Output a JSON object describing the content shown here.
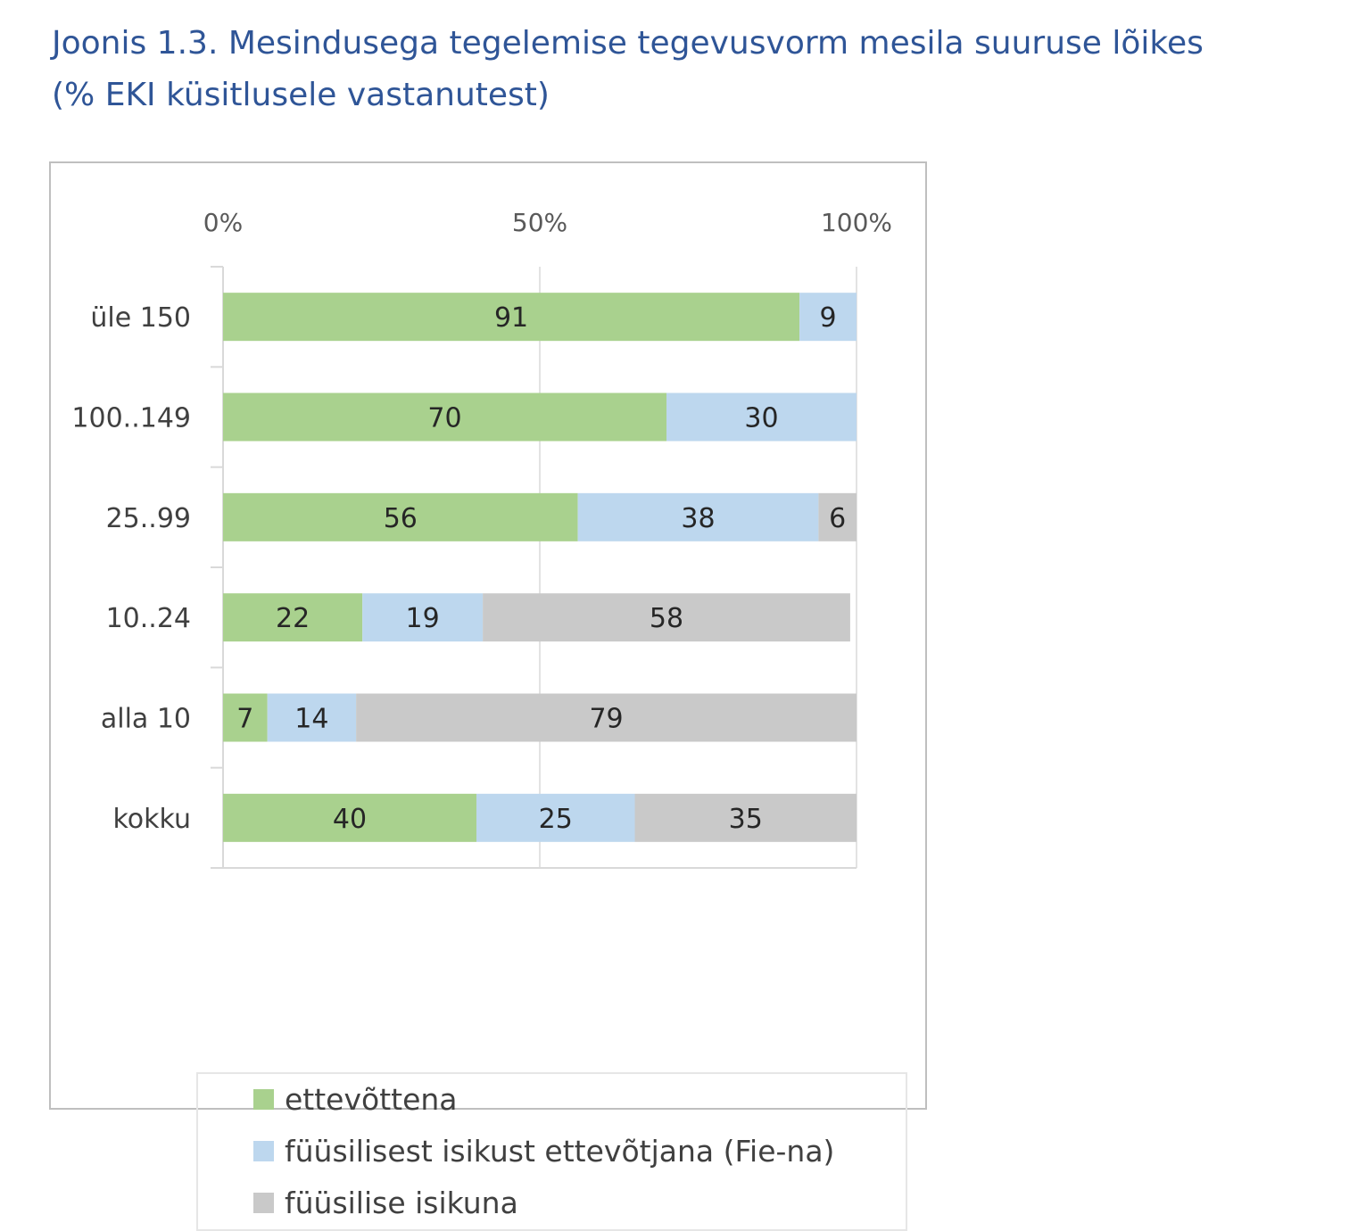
{
  "figure": {
    "title_line1": "Joonis 1.3. Mesindusega tegelemise tegevusvorm mesila suuruse lõikes",
    "title_line2": "(% EKI küsitlusele vastanutest)"
  },
  "chart_data": {
    "type": "bar",
    "orientation": "horizontal",
    "stacked": true,
    "percent_scale": true,
    "categories": [
      "üle 150",
      "100..149",
      "25..99",
      "10..24",
      "alla 10",
      "kokku"
    ],
    "series": [
      {
        "name": "ettevõttena",
        "color": "#a9d18e",
        "values": [
          91,
          70,
          56,
          22,
          7,
          40
        ]
      },
      {
        "name": "füüsilisest isikust ettevõtjana (Fie-na)",
        "color": "#bdd7ee",
        "values": [
          9,
          30,
          38,
          19,
          14,
          25
        ]
      },
      {
        "name": "füüsilise isikuna",
        "color": "#c9c9c9",
        "values": [
          0,
          0,
          6,
          58,
          79,
          35
        ]
      }
    ],
    "x_ticks": [
      "0%",
      "50%",
      "100%"
    ],
    "x_axis_position": "top",
    "xlim": [
      0,
      100
    ],
    "gridlines": true,
    "legend_position": "bottom"
  }
}
